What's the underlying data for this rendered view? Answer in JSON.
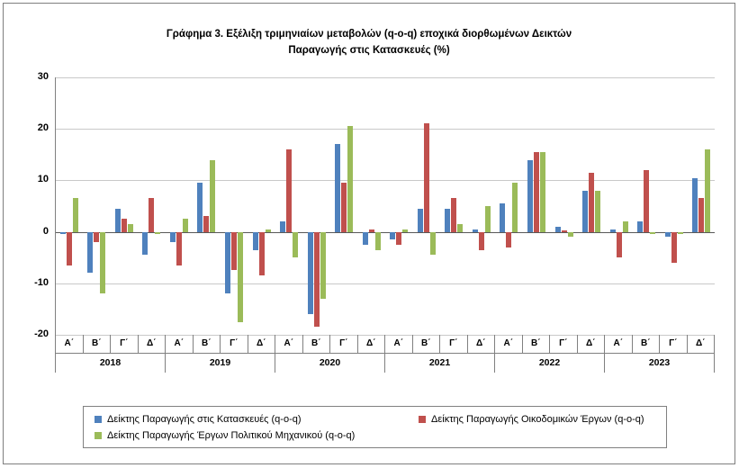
{
  "chart_data": {
    "type": "bar",
    "title_lines": [
      "Γράφημα 3. Εξέλιξη τριμηνιαίων μεταβολών (q-o-q) εποχικά διορθωμένων Δεικτών",
      "Παραγωγής στις Κατασκευές (%)"
    ],
    "title": "Γράφημα 3. Εξέλιξη τριμηνιαίων μεταβολών (q-o-q) εποχικά διορθωμένων Δεικτών Παραγωγής στις Κατασκευές (%)",
    "ylim": [
      -20,
      30
    ],
    "yticks": [
      30,
      20,
      10,
      0,
      -10,
      -20
    ],
    "grid": true,
    "legend_position": "bottom",
    "years": [
      "2018",
      "2019",
      "2020",
      "2021",
      "2022",
      "2023"
    ],
    "categories": [
      "Α΄",
      "Β΄",
      "Γ΄",
      "Δ΄",
      "Α΄",
      "Β΄",
      "Γ΄",
      "Δ΄",
      "Α΄",
      "Β΄",
      "Γ΄",
      "Δ΄",
      "Α΄",
      "Β΄",
      "Γ΄",
      "Δ΄",
      "Α΄",
      "Β΄",
      "Γ΄",
      "Δ΄",
      "Α΄",
      "Β΄",
      "Γ΄",
      "Δ΄"
    ],
    "series": [
      {
        "name": "Δείκτης Παραγωγής στις Κατασκευές (q-o-q)",
        "short": "constructions",
        "color": "#4F81BD",
        "values": [
          -0.5,
          -8,
          4.5,
          -4.5,
          -2,
          9.5,
          -12,
          -3.5,
          2,
          -16,
          17,
          -2.5,
          -1.5,
          4.5,
          4.5,
          0.5,
          5.5,
          14,
          1,
          8,
          0.5,
          2,
          -1,
          10.5
        ]
      },
      {
        "name": "Δείκτης Παραγωγής Οικοδομικών Έργων (q-o-q)",
        "short": "building-works",
        "color": "#C0504D",
        "values": [
          -6.5,
          -2,
          2.5,
          6.5,
          -6.5,
          3,
          -7.5,
          -8.5,
          16,
          -18.5,
          9.5,
          0.5,
          -2.5,
          21,
          6.5,
          -3.5,
          -3,
          15.5,
          0.3,
          11.5,
          -5,
          12,
          -6,
          6.5
        ]
      },
      {
        "name": "Δείκτης Παραγωγής Έργων Πολιτικού Μηχανικού (q-o-q)",
        "short": "civil-engineering",
        "color": "#9BBB59",
        "values": [
          6.5,
          -12,
          1.5,
          -0.5,
          2.5,
          14,
          -17.5,
          0.5,
          -5,
          -13,
          20.5,
          -3.5,
          0.5,
          -4.5,
          1.5,
          5,
          9.5,
          15.5,
          -1,
          8,
          2,
          -0.5,
          -0.5,
          16
        ]
      }
    ]
  }
}
